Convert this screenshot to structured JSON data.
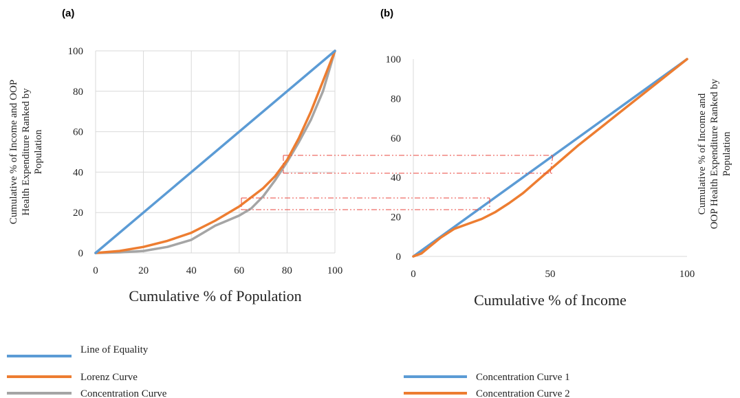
{
  "panel_a": {
    "tag": "(a)",
    "xlabel": "Cumulative % of Population",
    "ylabel_lines": [
      "Cumulative % of Income and OOP",
      "Health Expenditure Ranked by",
      "Population"
    ],
    "x_ticks": [
      "0",
      "20",
      "40",
      "60",
      "80",
      "100"
    ],
    "y_ticks": [
      "0",
      "20",
      "40",
      "60",
      "80",
      "100"
    ]
  },
  "panel_b": {
    "tag": "(b)",
    "xlabel": "Cumulative % of Income",
    "ylabel_lines": [
      "Cumulative % of Income and",
      "OOP Health Expenditure Ranked by",
      "Population"
    ],
    "x_ticks": [
      "0",
      "50",
      "100"
    ],
    "y_ticks": [
      "0",
      "20",
      "40",
      "60",
      "80",
      "100"
    ]
  },
  "legend_a": [
    "Line of Equality",
    "Lorenz Curve",
    "Concentration Curve"
  ],
  "legend_b": [
    "Concentration Curve 1",
    "Concentration Curve 2"
  ],
  "colors": {
    "blue": "#5b9bd5",
    "orange": "#ed7d31",
    "gray": "#a5a5a5",
    "guide": "#e8463c"
  },
  "chart_data": [
    {
      "type": "line",
      "xlim": [
        0,
        100
      ],
      "ylim": [
        0,
        100
      ],
      "grid": true,
      "series": [
        {
          "name": "Line of Equality",
          "color": "#5b9bd5",
          "x": [
            0,
            100
          ],
          "y": [
            0,
            100
          ]
        },
        {
          "name": "Lorenz Curve",
          "color": "#ed7d31",
          "x": [
            0,
            10,
            20,
            30,
            40,
            50,
            60,
            70,
            75,
            80,
            85,
            90,
            95,
            100
          ],
          "y": [
            0,
            1,
            3,
            6,
            10,
            16,
            23,
            32,
            38,
            46,
            57,
            70,
            85,
            100
          ]
        },
        {
          "name": "Concentration Curve",
          "color": "#a5a5a5",
          "x": [
            0,
            10,
            20,
            30,
            40,
            45,
            50,
            55,
            60,
            65,
            70,
            75,
            80,
            85,
            90,
            95,
            100
          ],
          "y": [
            0,
            0.3,
            1,
            3,
            6.5,
            10,
            13.5,
            16,
            18.5,
            22,
            28,
            36,
            45,
            55,
            66,
            80,
            100
          ]
        }
      ]
    },
    {
      "type": "line",
      "xlim": [
        0,
        100
      ],
      "ylim": [
        0,
        100
      ],
      "grid": false,
      "series": [
        {
          "name": "Concentration Curve 1",
          "color": "#5b9bd5",
          "x": [
            0,
            100
          ],
          "y": [
            0,
            100
          ]
        },
        {
          "name": "Concentration Curve 2",
          "color": "#ed7d31",
          "x": [
            0,
            3,
            6,
            10,
            15,
            20,
            25,
            30,
            35,
            40,
            45,
            50,
            55,
            60,
            70,
            80,
            90,
            100
          ],
          "y": [
            0,
            1.5,
            5,
            9.5,
            14,
            16.5,
            19,
            22.5,
            27,
            32,
            38,
            44,
            50,
            56,
            67,
            78,
            89,
            100
          ]
        }
      ]
    }
  ]
}
